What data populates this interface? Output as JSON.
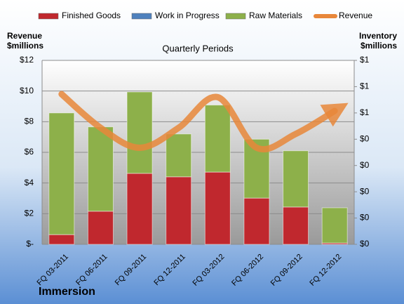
{
  "chart_data": {
    "type": "bar",
    "title": "Quarterly Periods",
    "y_label": [
      "Revenue",
      "$millions"
    ],
    "y2_label": [
      "Inventory",
      "$millions"
    ],
    "footer": "Immersion",
    "legend": "top",
    "grid": true,
    "categories": [
      "FQ 03-2011",
      "FQ 06-2011",
      "FQ 09-2011",
      "FQ 12-2011",
      "FQ 03-2012",
      "FQ 06-2012",
      "FQ 09-2012",
      "FQ 12-2012"
    ],
    "series": [
      {
        "name": "Finished Goods",
        "type": "bar",
        "axis": "y2",
        "color": "#c0282e",
        "values": [
          0.037,
          0.126,
          0.27,
          0.257,
          0.275,
          0.176,
          0.142,
          0.005
        ]
      },
      {
        "name": "Work in Progress",
        "type": "bar",
        "axis": "y2",
        "color": "#4f81bd",
        "values": [
          0,
          0,
          0,
          0,
          0,
          0,
          0,
          0
        ]
      },
      {
        "name": "Raw Materials",
        "type": "bar",
        "axis": "y2",
        "color": "#8db04a",
        "values": [
          0.463,
          0.321,
          0.31,
          0.163,
          0.255,
          0.224,
          0.214,
          0.134
        ]
      },
      {
        "name": "Revenue",
        "type": "line",
        "axis": "y",
        "color": "#e8873a",
        "values": [
          9.8,
          7.6,
          6.3,
          7.6,
          9.6,
          6.3,
          7.2,
          8.7
        ]
      }
    ],
    "ylim": [
      0,
      12
    ],
    "yticks": [
      {
        "value": 0,
        "label": "$-"
      },
      {
        "value": 2,
        "label": "$2"
      },
      {
        "value": 4,
        "label": "$4"
      },
      {
        "value": 6,
        "label": "$6"
      },
      {
        "value": 8,
        "label": "$8"
      },
      {
        "value": 10,
        "label": "$10"
      },
      {
        "value": 12,
        "label": "$12"
      }
    ],
    "y2lim": [
      0,
      0.7
    ],
    "y2ticks": [
      {
        "value": 0,
        "label": "$0"
      },
      {
        "value": 0.1,
        "label": "$0"
      },
      {
        "value": 0.2,
        "label": "$0"
      },
      {
        "value": 0.3,
        "label": "$0"
      },
      {
        "value": 0.4,
        "label": "$0"
      },
      {
        "value": 0.5,
        "label": "$1"
      },
      {
        "value": 0.6,
        "label": "$1"
      },
      {
        "value": 0.7,
        "label": "$1"
      }
    ]
  }
}
